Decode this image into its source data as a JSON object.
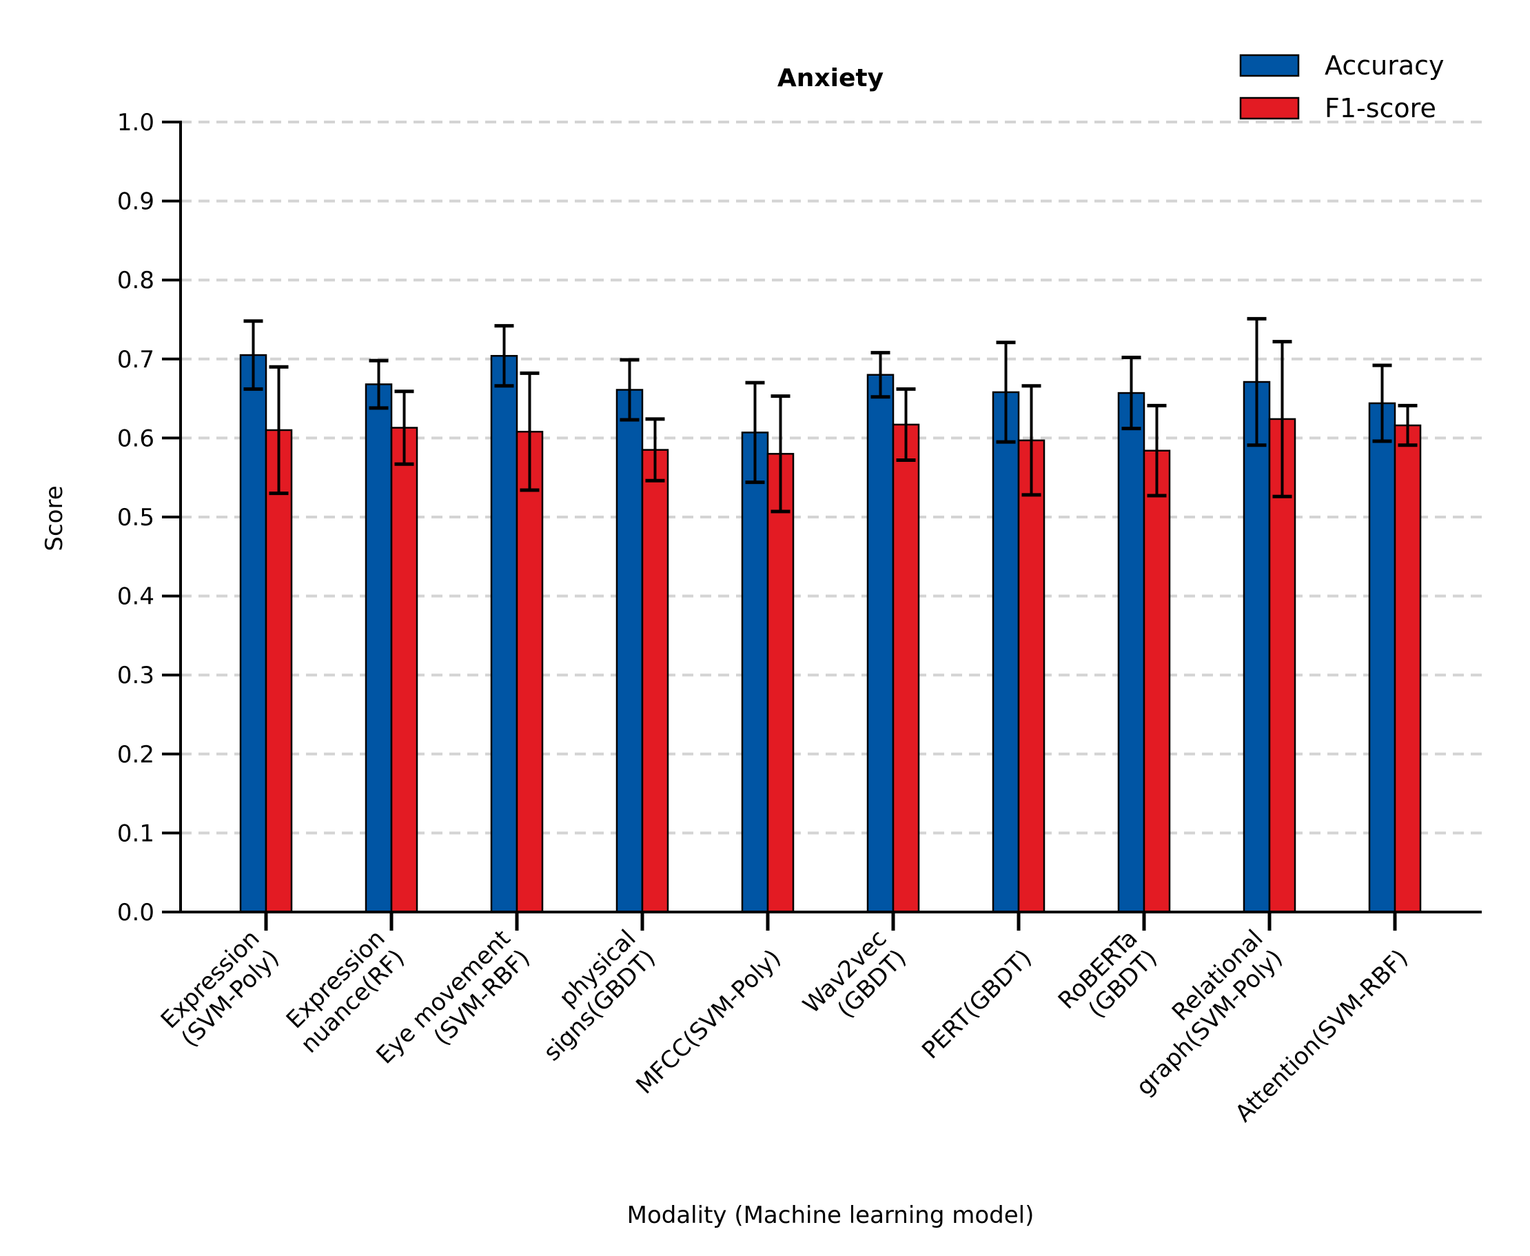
{
  "chart_data": {
    "type": "bar",
    "title": "Anxiety",
    "xlabel": "Modality (Machine learning model)",
    "ylabel": "Score",
    "ylim": [
      0.0,
      1.0
    ],
    "yticks": [
      "0.0",
      "0.1",
      "0.2",
      "0.3",
      "0.4",
      "0.5",
      "0.6",
      "0.7",
      "0.8",
      "0.9",
      "1.0"
    ],
    "grid": "horizontal dashed",
    "legend_position": "top-right",
    "categories": [
      [
        "Expression",
        "(SVM-Poly)"
      ],
      [
        "Expression",
        "nuance(RF)"
      ],
      [
        "Eye movement",
        "(SVM-RBF)"
      ],
      [
        "physical",
        "signs(GBDT)"
      ],
      [
        "MFCC(SVM-Poly)"
      ],
      [
        "Wav2vec",
        "(GBDT)"
      ],
      [
        "PERT(GBDT)"
      ],
      [
        "RoBERTa",
        "(GBDT)"
      ],
      [
        "Relational",
        "graph(SVM-Poly)"
      ],
      [
        "Attention(SVM-RBF)"
      ]
    ],
    "series": [
      {
        "name": "Accuracy",
        "color": "#0055a4",
        "values": [
          0.705,
          0.668,
          0.704,
          0.661,
          0.607,
          0.68,
          0.658,
          0.657,
          0.671,
          0.644
        ],
        "errors": [
          0.043,
          0.03,
          0.038,
          0.038,
          0.063,
          0.028,
          0.063,
          0.045,
          0.08,
          0.048
        ]
      },
      {
        "name": "F1-score",
        "color": "#e31b23",
        "values": [
          0.61,
          0.613,
          0.608,
          0.585,
          0.58,
          0.617,
          0.597,
          0.584,
          0.624,
          0.616
        ],
        "errors": [
          0.08,
          0.046,
          0.074,
          0.039,
          0.073,
          0.045,
          0.069,
          0.057,
          0.098,
          0.025
        ]
      }
    ]
  }
}
